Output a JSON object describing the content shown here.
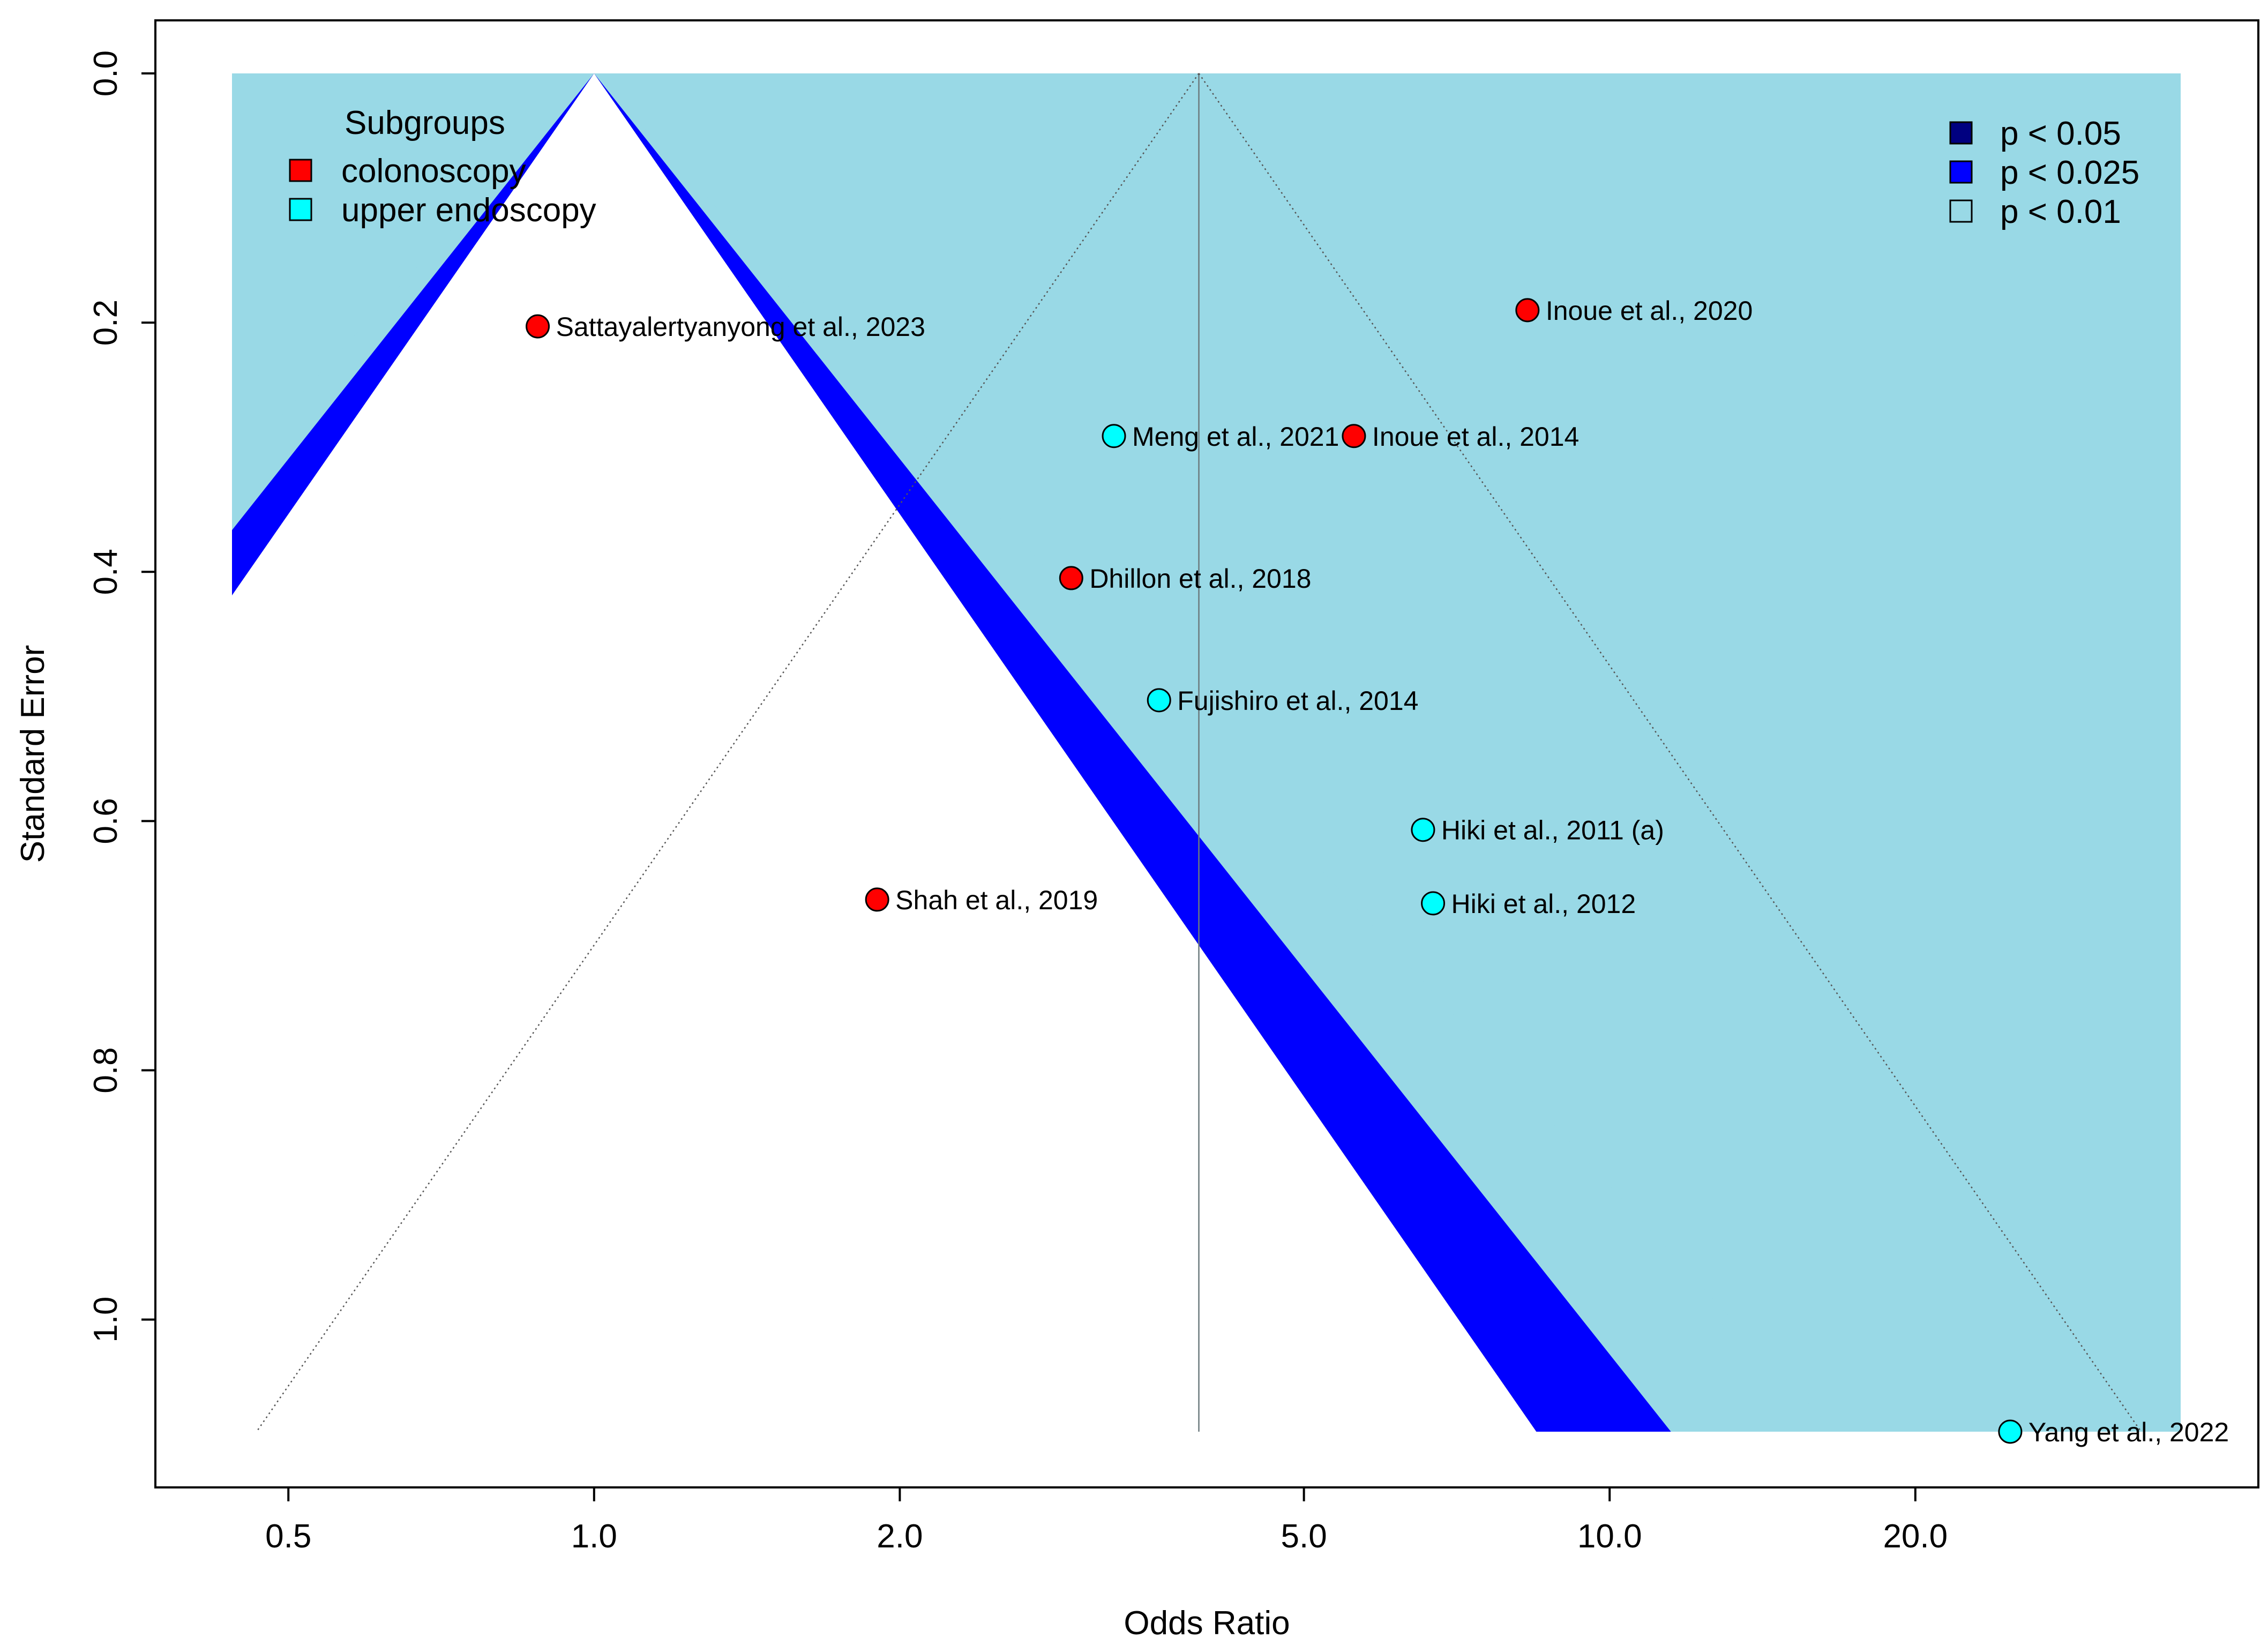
{
  "chart_data": {
    "type": "scatter",
    "subtype": "contour-enhanced funnel plot",
    "title": "",
    "xlabel": "Odds Ratio",
    "ylabel": "Standard Error",
    "x_scale": "log",
    "xlim": [
      0.44,
      36.5
    ],
    "ylim": [
      1.09,
      0.0
    ],
    "x_ticks": [
      0.5,
      1.0,
      2.0,
      5.0,
      10.0,
      20.0
    ],
    "x_tick_labels": [
      "0.5",
      "1.0",
      "2.0",
      "5.0",
      "10.0",
      "20.0"
    ],
    "y_ticks": [
      0.0,
      0.2,
      0.4,
      0.6,
      0.8,
      1.0
    ],
    "y_tick_labels": [
      "0.0",
      "0.2",
      "0.4",
      "0.6",
      "0.8",
      "1.0"
    ],
    "null_value": 1.0,
    "pooled_estimate": 3.94,
    "background_color": "#99D9E6",
    "contours": [
      {
        "label": "p < 0.05",
        "z": 1.96,
        "color": "#000080"
      },
      {
        "label": "p < 0.025",
        "z": 2.24,
        "color": "#0000FF"
      },
      {
        "label": "p < 0.01",
        "z": 2.58,
        "color": "#99D9E6"
      }
    ],
    "contour_legend_title": "",
    "subgroups_title": "Subgroups",
    "subgroups": [
      {
        "name": "colonoscopy",
        "color": "#FF0000"
      },
      {
        "name": "upper endoscopy",
        "color": "#00FFFF"
      }
    ],
    "points": [
      {
        "label": "Sattayalertyanyong et al., 2023",
        "or": 0.88,
        "se": 0.203,
        "group": "colonoscopy"
      },
      {
        "label": "Inoue et al., 2020",
        "or": 8.3,
        "se": 0.19,
        "group": "colonoscopy"
      },
      {
        "label": "Meng et al., 2021",
        "or": 3.25,
        "se": 0.291,
        "group": "upper endoscopy"
      },
      {
        "label": "Inoue et al., 2014",
        "or": 5.6,
        "se": 0.291,
        "group": "colonoscopy"
      },
      {
        "label": "Dhillon et al., 2018",
        "or": 2.95,
        "se": 0.405,
        "group": "colonoscopy"
      },
      {
        "label": "Fujishiro et al., 2014",
        "or": 3.6,
        "se": 0.503,
        "group": "upper endoscopy"
      },
      {
        "label": "Hiki et al., 2011 (a)",
        "or": 6.55,
        "se": 0.607,
        "group": "upper endoscopy"
      },
      {
        "label": "Shah et al., 2019",
        "or": 1.9,
        "se": 0.663,
        "group": "colonoscopy"
      },
      {
        "label": "Hiki et al., 2012",
        "or": 6.7,
        "se": 0.666,
        "group": "upper endoscopy"
      },
      {
        "label": "Yang et al.,  2022",
        "or": 24.8,
        "se": 1.09,
        "group": "upper endoscopy"
      }
    ]
  }
}
